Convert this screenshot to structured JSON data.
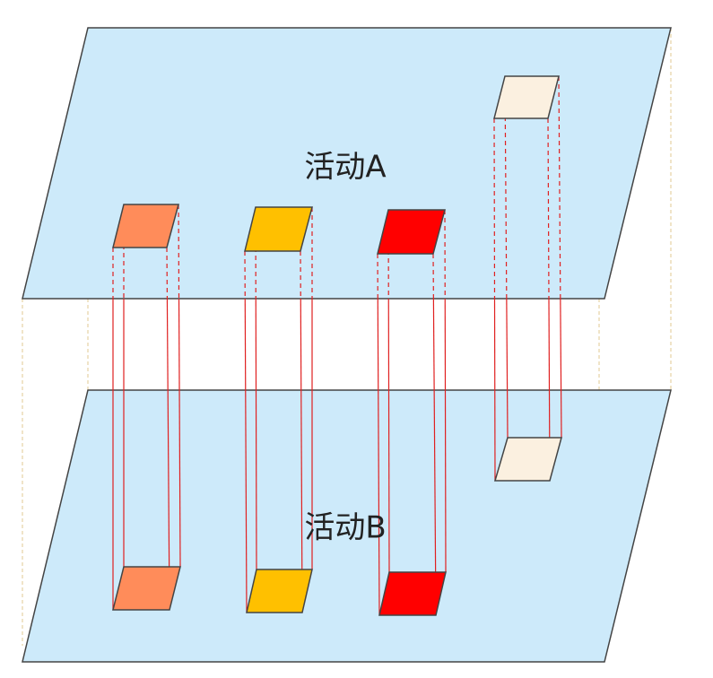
{
  "planes": [
    {
      "label": "活动A"
    },
    {
      "label": "活动B"
    }
  ]
}
